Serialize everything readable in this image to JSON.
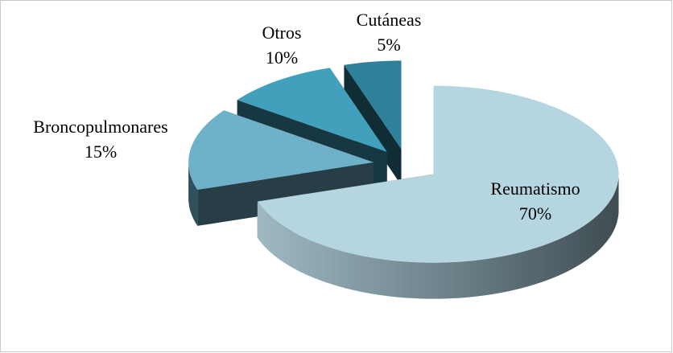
{
  "chart_data": {
    "type": "pie",
    "categories": [
      "Reumatismo",
      "Broncopulmonares",
      "Otros",
      "Cutáneas"
    ],
    "values": [
      70,
      15,
      10,
      5
    ],
    "value_labels": [
      "70%",
      "15%",
      "10%",
      "5%"
    ],
    "colors": [
      "#b5d6e1",
      "#6fb1c9",
      "#41a1bc",
      "#2f8099"
    ]
  }
}
